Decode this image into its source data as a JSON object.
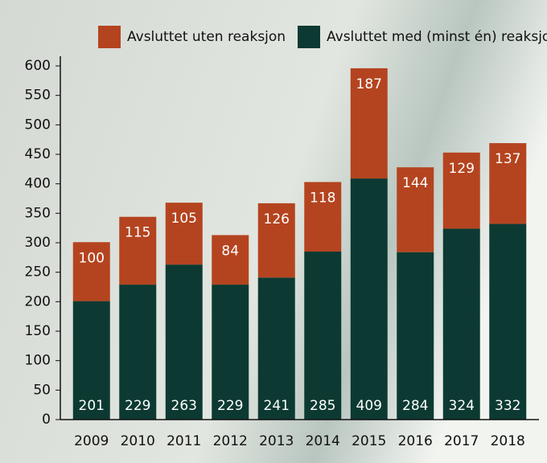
{
  "chart_data": {
    "type": "stacked_bar",
    "categories": [
      "2009",
      "2010",
      "2011",
      "2012",
      "2013",
      "2014",
      "2015",
      "2016",
      "2017",
      "2018"
    ],
    "series": [
      {
        "name": "Avsluttet med (minst én) reaksjon",
        "color": "#0c3a32",
        "values": [
          201,
          229,
          263,
          229,
          241,
          285,
          409,
          284,
          324,
          332
        ]
      },
      {
        "name": "Avsluttet uten reaksjon",
        "color": "#b4441f",
        "values": [
          100,
          115,
          105,
          84,
          126,
          118,
          187,
          144,
          129,
          137
        ]
      }
    ],
    "ylim": [
      0,
      600
    ],
    "yticks": [
      0,
      50,
      100,
      150,
      200,
      250,
      300,
      350,
      400,
      450,
      500,
      550,
      600
    ],
    "legend": "top-right"
  }
}
